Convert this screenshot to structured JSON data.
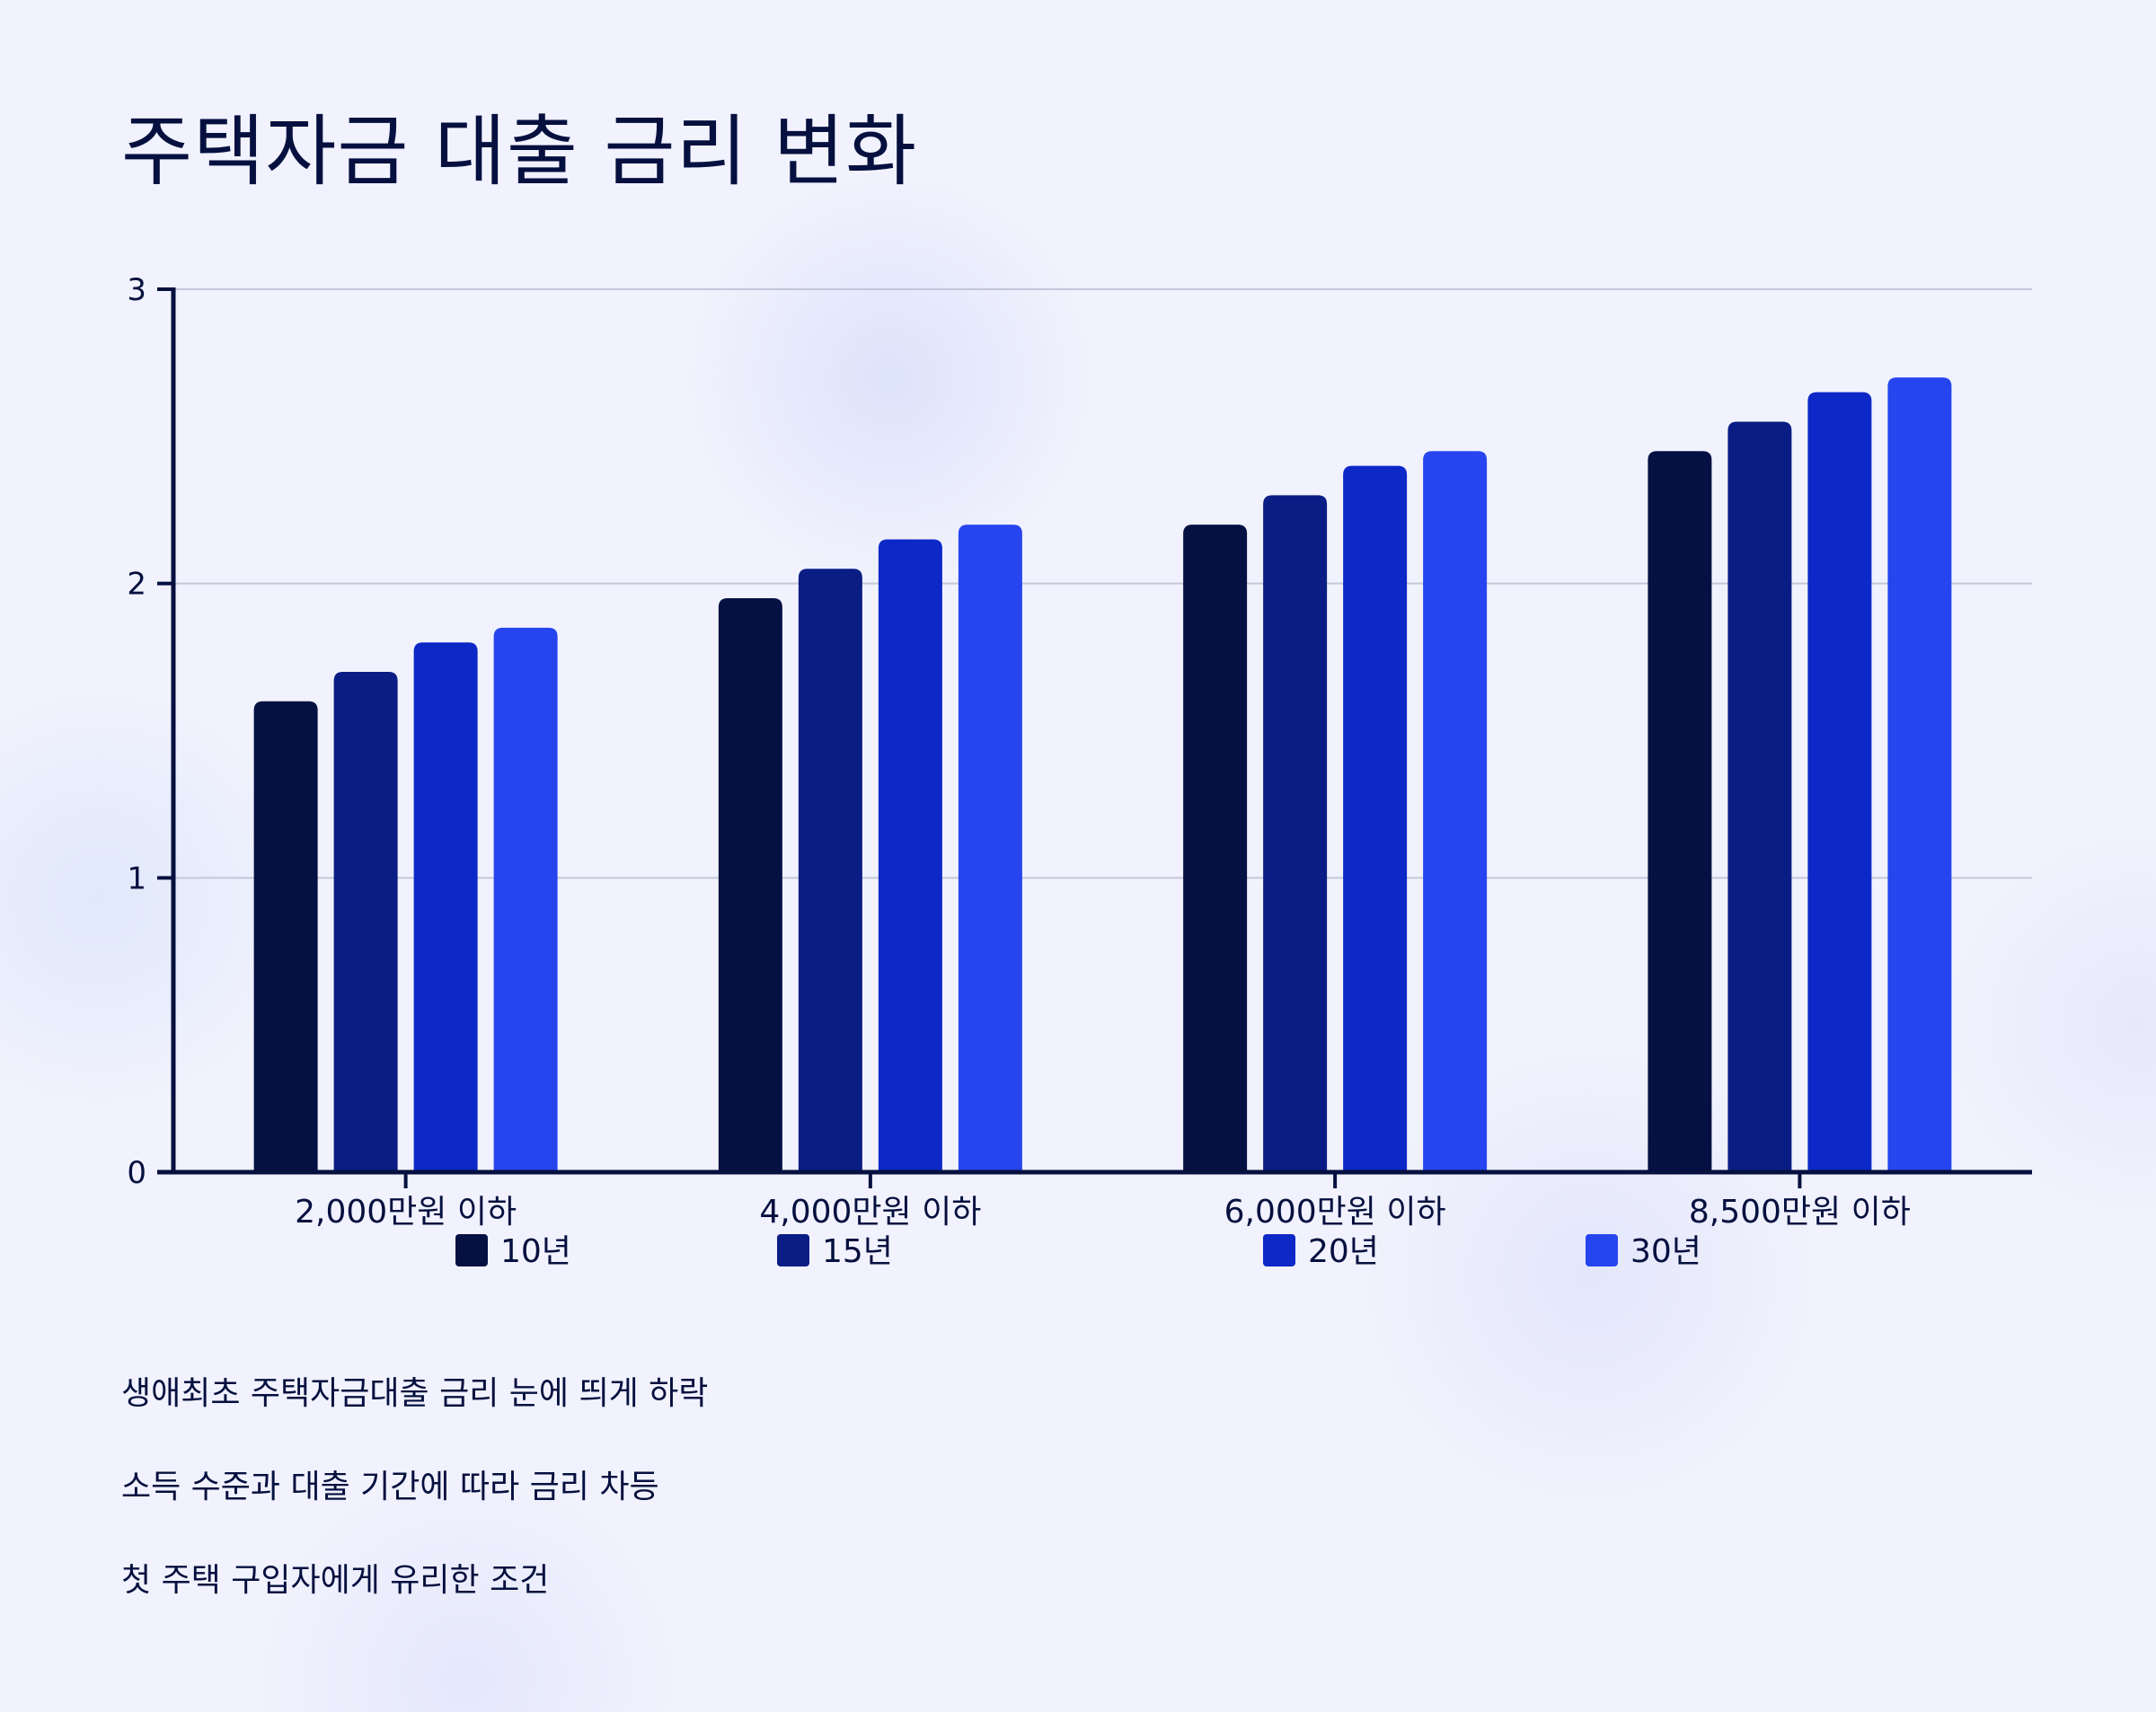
{
  "title": "주택자금 대출 금리 변화",
  "chart_data": {
    "type": "bar",
    "title": "주택자금 대출 금리 변화",
    "xlabel": "",
    "ylabel": "",
    "categories": [
      "2,000만원 이하",
      "4,000만원 이하",
      "6,000만원 이하",
      "8,500만원 이하"
    ],
    "series": [
      {
        "name": "10년",
        "color": "#051142",
        "values": [
          1.6,
          1.95,
          2.2,
          2.45
        ]
      },
      {
        "name": "15년",
        "color": "#091d85",
        "values": [
          1.7,
          2.05,
          2.3,
          2.55
        ]
      },
      {
        "name": "20년",
        "color": "#0c28c7",
        "values": [
          1.8,
          2.15,
          2.4,
          2.65
        ]
      },
      {
        "name": "30년",
        "color": "#2645ee",
        "values": [
          1.85,
          2.2,
          2.45,
          2.7
        ]
      }
    ],
    "ylim": [
      0,
      3
    ],
    "yticks": [
      0,
      1,
      2,
      3
    ],
    "grid": true,
    "legend_position": "bottom"
  },
  "bullets": [
    "생애최초 주택자금대출 금리 눈에 띄게 하락",
    "소득 수준과 대출 기간에 따라 금리 차등",
    "첫 주택 구입자에게 유리한 조건"
  ]
}
